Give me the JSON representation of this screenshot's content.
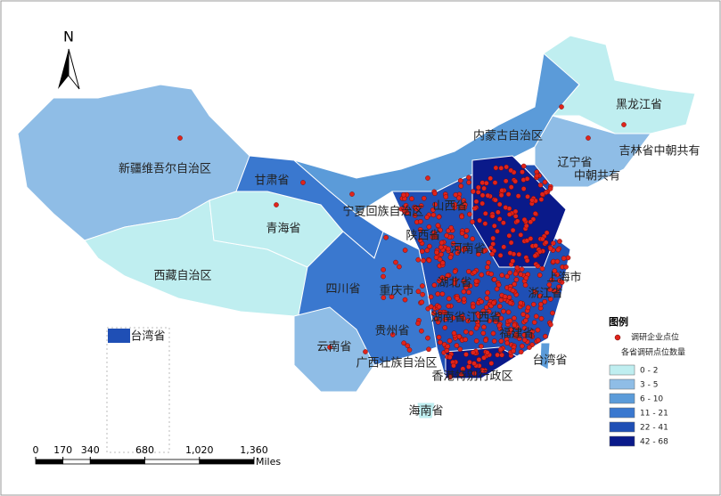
{
  "north": "N",
  "provinces": [
    "新疆维吾尔自治区",
    "西藏自治区",
    "青海省",
    "甘肃省",
    "内蒙古自治区",
    "黑龙江省",
    "吉林省中朝共有",
    "辽宁省",
    "中朝共有",
    "宁夏回族自治区",
    "山西省",
    "陕西省",
    "河南省",
    "四川省",
    "重庆市",
    "湖北省",
    "湖南省",
    "江西省",
    "福建省",
    "浙江省",
    "上海市",
    "贵州省",
    "云南省",
    "广西壮族自治区",
    "香港特别行政区",
    "台湾省",
    "海南省"
  ],
  "inset_label": "台湾省",
  "legend": {
    "title": "图例",
    "point_label": "调研企业点位",
    "point_color": "#e0241b",
    "fill_title": "各省调研点位数量",
    "classes": [
      {
        "label": "0 - 2",
        "color": "#bfeef0"
      },
      {
        "label": "3 - 5",
        "color": "#8fbde6"
      },
      {
        "label": "6 - 10",
        "color": "#5b9bd9"
      },
      {
        "label": "11 - 21",
        "color": "#3a78cf"
      },
      {
        "label": "22 - 41",
        "color": "#1f4fb5"
      },
      {
        "label": "42 - 68",
        "color": "#0a1a8a"
      }
    ]
  },
  "scale_bar": {
    "ticks": [
      0,
      170,
      340,
      680,
      {
        "value": 1020,
        "label": "1,020"
      },
      {
        "value": 1360,
        "label": "1,360"
      }
    ],
    "unit": "Miles"
  }
}
